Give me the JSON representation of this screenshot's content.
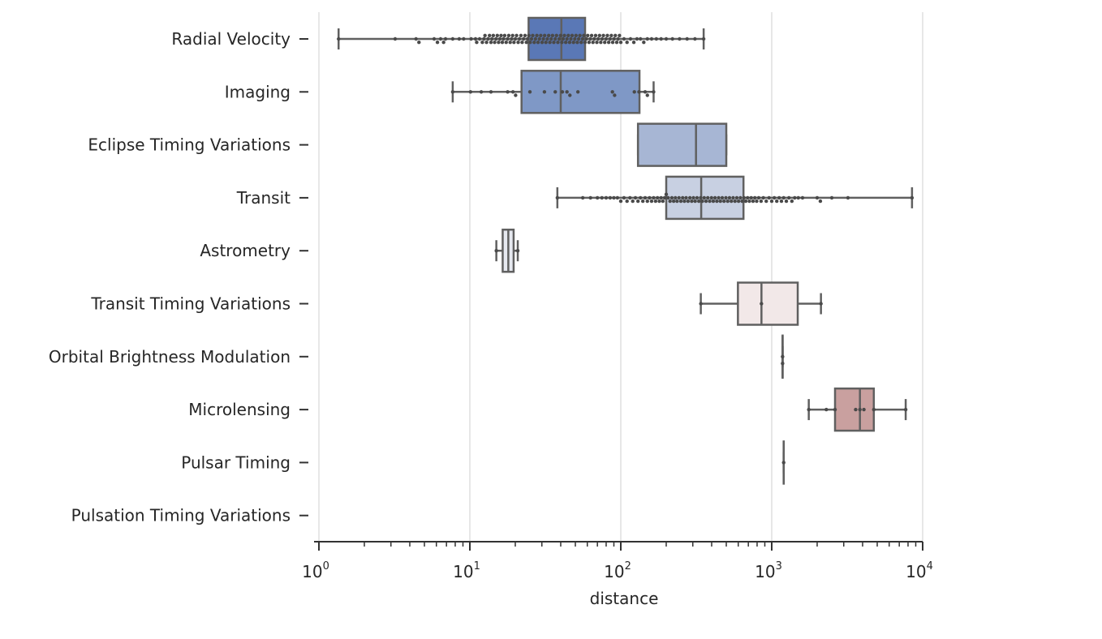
{
  "chart_data": {
    "type": "box",
    "title": "",
    "xlabel": "distance",
    "ylabel": "",
    "xscale": "log",
    "xlim": [
      1,
      10000
    ],
    "grid": "vertical major",
    "x_ticks": [
      {
        "value": 1,
        "base": "10",
        "exp": "0"
      },
      {
        "value": 10,
        "base": "10",
        "exp": "1"
      },
      {
        "value": 100,
        "base": "10",
        "exp": "2"
      },
      {
        "value": 1000,
        "base": "10",
        "exp": "3"
      },
      {
        "value": 10000,
        "base": "10",
        "exp": "4"
      }
    ],
    "categories": [
      "Radial Velocity",
      "Imaging",
      "Eclipse Timing Variations",
      "Transit",
      "Astrometry",
      "Transit Timing Variations",
      "Orbital Brightness Modulation",
      "Microlensing",
      "Pulsar Timing",
      "Pulsation Timing Variations"
    ],
    "boxes": [
      {
        "method": "Radial Velocity",
        "whislo": 1.35,
        "q1": 24.5,
        "med": 40.4,
        "q3": 58.0,
        "whishi": 354,
        "color": "#5a78b6"
      },
      {
        "method": "Imaging",
        "whislo": 7.7,
        "q1": 22,
        "med": 40,
        "q3": 133,
        "whishi": 165,
        "color": "#7f98c6"
      },
      {
        "method": "Eclipse Timing Variations",
        "whislo": 130,
        "q1": 130,
        "med": 315,
        "q3": 500,
        "whishi": 500,
        "color": "#a7b6d4"
      },
      {
        "method": "Transit",
        "whislo": 38,
        "q1": 200,
        "med": 341,
        "q3": 650,
        "whishi": 8500,
        "color": "#c8d0e2"
      },
      {
        "method": "Astrometry",
        "whislo": 14.98,
        "q1": 16.5,
        "med": 17.98,
        "q3": 19.5,
        "whishi": 20.77,
        "color": "#e6e9f0"
      },
      {
        "method": "Transit Timing Variations",
        "whislo": 339,
        "q1": 597,
        "med": 855,
        "q3": 1487,
        "whishi": 2119,
        "color": "#f2e8e8"
      },
      {
        "method": "Orbital Brightness Modulation",
        "whislo": 1180,
        "q1": 1180,
        "med": 1180,
        "q3": 1180,
        "whishi": 1180,
        "color": "#e8d6d6"
      },
      {
        "method": "Microlensing",
        "whislo": 1760,
        "q1": 2627,
        "med": 3840,
        "q3": 4747,
        "whishi": 7720,
        "color": "#c9a09f"
      },
      {
        "method": "Pulsar Timing",
        "whislo": 1200,
        "q1": 1200,
        "med": 1200,
        "q3": 1200,
        "whishi": 1200,
        "color": "#bf8f8e"
      },
      {
        "method": "Pulsation Timing Variations",
        "whislo": null,
        "q1": null,
        "med": null,
        "q3": null,
        "whishi": null,
        "color": "#b07a79"
      }
    ],
    "swarm_points": {
      "Radial Velocity": [
        1.35,
        3.2,
        4.4,
        4.6,
        5.8,
        6.1,
        6.4,
        6.7,
        6.9,
        7.7,
        8.5,
        9.1,
        10.2,
        10.9,
        11.1,
        11.6,
        12.1,
        12.4,
        12.6,
        12.9,
        13.2,
        13.5,
        13.8,
        14.0,
        14.3,
        14.6,
        14.9,
        15.2,
        15.5,
        15.8,
        16.1,
        16.4,
        16.7,
        17.0,
        17.4,
        17.8,
        18.1,
        18.5,
        18.9,
        19.2,
        19.6,
        20.0,
        20.4,
        20.9,
        21.3,
        21.8,
        22.2,
        22.7,
        23.2,
        23.7,
        24.1,
        24.6,
        25.1,
        25.6,
        26.1,
        26.7,
        27.2,
        27.8,
        28.3,
        28.9,
        29.5,
        30.1,
        30.7,
        31.3,
        31.9,
        32.6,
        33.3,
        33.9,
        34.6,
        35.3,
        36.0,
        36.8,
        37.5,
        38.3,
        39.1,
        39.9,
        40.7,
        41.5,
        42.3,
        43.2,
        44.0,
        44.9,
        45.8,
        46.7,
        47.6,
        48.6,
        49.6,
        50.5,
        51.5,
        52.6,
        53.6,
        54.7,
        55.8,
        56.9,
        58.0,
        59.2,
        60.4,
        61.6,
        62.8,
        64.1,
        65.4,
        66.7,
        68.1,
        69.4,
        70.8,
        72.3,
        73.7,
        75.2,
        76.7,
        78.3,
        79.9,
        81.5,
        83.2,
        84.9,
        86.6,
        88.4,
        90.2,
        92.0,
        94.0,
        96.0,
        98.0,
        100.0,
        105.0,
        110.0,
        116.0,
        122.0,
        128.0,
        135.0,
        142.0,
        150.0,
        160.0,
        172.0,
        185.0,
        200.0,
        220.0,
        245.0,
        275.0,
        310.0,
        354.0
      ],
      "Imaging": [
        7.7,
        10.1,
        11.9,
        13.8,
        17.8,
        19.3,
        20.1,
        25.0,
        31.2,
        36.8,
        41.0,
        44.0,
        46.0,
        52.0,
        88.0,
        91.0,
        123.0,
        132.0,
        145.0,
        150.0,
        165.0
      ],
      "Transit": [
        38,
        56,
        63,
        70,
        75,
        80,
        85,
        90,
        95,
        100,
        105,
        110,
        115,
        120,
        125,
        130,
        135,
        140,
        145,
        150,
        155,
        160,
        165,
        170,
        175,
        180,
        185,
        190,
        195,
        200,
        206,
        212,
        218,
        224,
        230,
        236,
        243,
        250,
        257,
        264,
        271,
        279,
        287,
        295,
        303,
        311,
        320,
        329,
        338,
        347,
        357,
        367,
        377,
        388,
        399,
        410,
        421,
        433,
        445,
        457,
        470,
        483,
        497,
        511,
        525,
        540,
        555,
        571,
        587,
        603,
        620,
        637,
        655,
        673,
        692,
        711,
        731,
        752,
        773,
        795,
        820,
        850,
        880,
        920,
        960,
        1000,
        1040,
        1080,
        1120,
        1160,
        1200,
        1250,
        1300,
        1360,
        1420,
        1500,
        1600,
        2000,
        2100,
        2500,
        3200,
        8500
      ],
      "Astrometry": [
        14.98,
        20.77
      ],
      "Transit Timing Variations": [
        339,
        855,
        2119
      ],
      "Orbital Brightness Modulation": [
        1180,
        1180
      ],
      "Microlensing": [
        1760,
        2300,
        2627,
        3600,
        3840,
        4080,
        4747,
        7720
      ],
      "Pulsar Timing": [
        1200
      ]
    }
  }
}
